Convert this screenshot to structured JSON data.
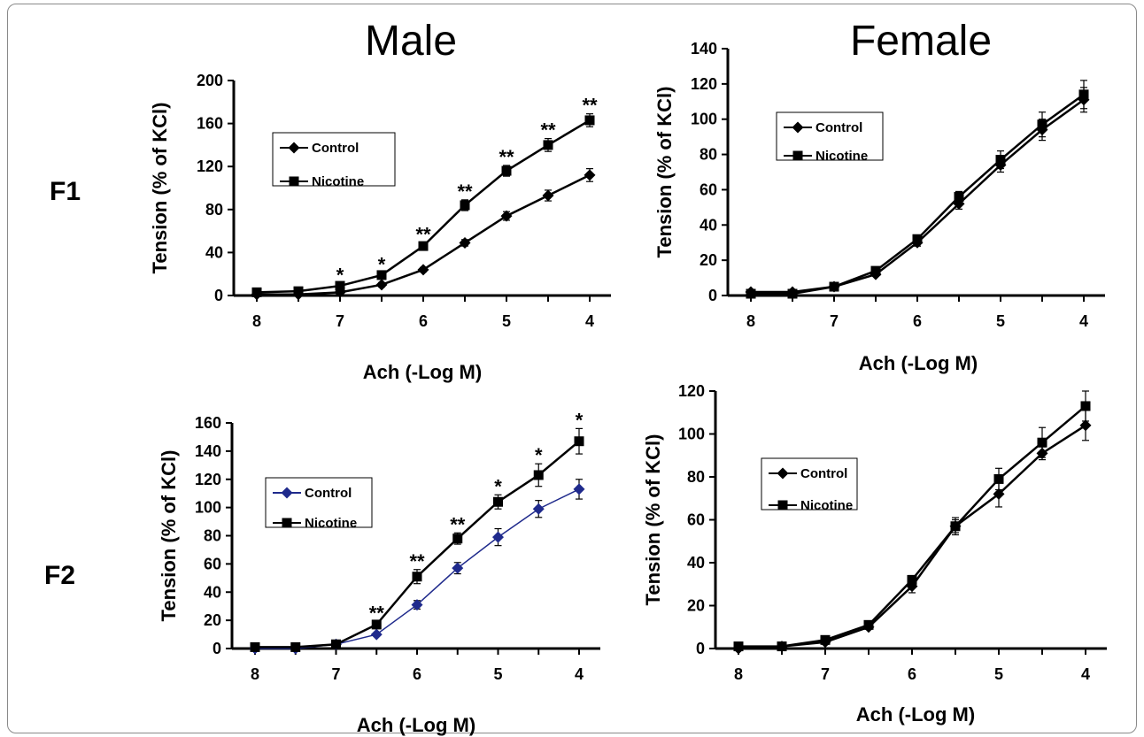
{
  "figure": {
    "col_titles": [
      "Male",
      "Female"
    ],
    "row_labels": [
      "F1",
      "F2"
    ]
  },
  "chart_data": [
    {
      "id": "F1-male",
      "type": "line",
      "title": "",
      "xlabel": "Ach (-Log M)",
      "ylabel": "Tension (% of KCl)",
      "x": [
        8,
        7.5,
        7,
        6.5,
        6,
        5.5,
        5,
        4.5,
        4
      ],
      "x_ticks": [
        8,
        7,
        6,
        5,
        4
      ],
      "xlim": [
        8,
        4
      ],
      "ylim": [
        0,
        200
      ],
      "y_ticks": [
        0,
        40,
        80,
        120,
        160,
        200
      ],
      "legend_position": "upper-left",
      "series": [
        {
          "name": "Control",
          "marker": "diamond",
          "color": "#000000",
          "values": [
            1,
            1,
            3,
            10,
            24,
            49,
            74,
            93,
            112
          ],
          "errors": [
            1,
            1,
            1,
            2,
            2,
            3,
            4,
            5,
            6
          ]
        },
        {
          "name": "Nicotine",
          "marker": "square",
          "color": "#000000",
          "values": [
            3,
            4,
            9,
            19,
            46,
            84,
            116,
            140,
            163
          ],
          "errors": [
            1,
            1,
            2,
            2,
            3,
            5,
            5,
            6,
            6
          ]
        }
      ],
      "annotations": [
        "",
        "",
        "*",
        "*",
        "**",
        "**",
        "**",
        "**",
        "**"
      ]
    },
    {
      "id": "F1-female",
      "type": "line",
      "title": "",
      "xlabel": "Ach (-Log M)",
      "ylabel": "Tension (% of KCl)",
      "x": [
        8,
        7.5,
        7,
        6.5,
        6,
        5.5,
        5,
        4.5,
        4
      ],
      "x_ticks": [
        8,
        7,
        6,
        5,
        4
      ],
      "xlim": [
        8,
        4
      ],
      "ylim": [
        0,
        140
      ],
      "y_ticks": [
        0,
        20,
        40,
        60,
        80,
        100,
        120,
        140
      ],
      "legend_position": "upper-left",
      "series": [
        {
          "name": "Control",
          "marker": "diamond",
          "color": "#000000",
          "values": [
            2,
            2,
            5,
            12,
            30,
            52,
            74,
            94,
            111
          ],
          "errors": [
            1,
            1,
            1,
            1,
            2,
            3,
            4,
            6,
            7
          ]
        },
        {
          "name": "Nicotine",
          "marker": "square",
          "color": "#000000",
          "values": [
            1,
            1,
            5,
            14,
            32,
            56,
            77,
            97,
            114
          ],
          "errors": [
            1,
            1,
            1,
            1,
            2,
            3,
            5,
            7,
            8
          ]
        }
      ],
      "annotations": []
    },
    {
      "id": "F2-male",
      "type": "line",
      "title": "",
      "xlabel": "Ach (-Log M)",
      "ylabel": "Tension (% of KCl)",
      "x": [
        8,
        7.5,
        7,
        6.5,
        6,
        5.5,
        5,
        4.5,
        4
      ],
      "x_ticks": [
        8,
        7,
        6,
        5,
        4
      ],
      "xlim": [
        8,
        4
      ],
      "ylim": [
        0,
        160
      ],
      "y_ticks": [
        0,
        20,
        40,
        60,
        80,
        100,
        120,
        140,
        160
      ],
      "legend_position": "center-left",
      "series": [
        {
          "name": "Control",
          "marker": "diamond",
          "color": "#1f2a8c",
          "values": [
            0,
            0,
            3,
            10,
            31,
            57,
            79,
            99,
            113
          ],
          "errors": [
            1,
            1,
            1,
            1,
            3,
            4,
            6,
            6,
            7
          ]
        },
        {
          "name": "Nicotine",
          "marker": "square",
          "color": "#000000",
          "values": [
            1,
            1,
            3,
            17,
            51,
            78,
            104,
            123,
            147
          ],
          "errors": [
            1,
            1,
            1,
            2,
            5,
            4,
            5,
            8,
            9
          ]
        }
      ],
      "annotations": [
        "",
        "",
        "",
        "**",
        "**",
        "**",
        "*",
        "*",
        "*"
      ]
    },
    {
      "id": "F2-female",
      "type": "line",
      "title": "",
      "xlabel": "Ach (-Log M)",
      "ylabel": "Tension (% of KCl)",
      "x": [
        8,
        7.5,
        7,
        6.5,
        6,
        5.5,
        5,
        4.5,
        4
      ],
      "x_ticks": [
        8,
        7,
        6,
        5,
        4
      ],
      "xlim": [
        8,
        4
      ],
      "ylim": [
        0,
        120
      ],
      "y_ticks": [
        0,
        20,
        40,
        60,
        80,
        100,
        120
      ],
      "legend_position": "center-left",
      "series": [
        {
          "name": "Control",
          "marker": "diamond",
          "color": "#000000",
          "values": [
            0,
            1,
            3,
            10,
            29,
            57,
            72,
            91,
            104
          ],
          "errors": [
            1,
            1,
            1,
            1,
            3,
            3,
            6,
            3,
            7
          ]
        },
        {
          "name": "Nicotine",
          "marker": "square",
          "color": "#000000",
          "values": [
            1,
            1,
            4,
            11,
            32,
            57,
            79,
            96,
            113
          ],
          "errors": [
            1,
            1,
            1,
            1,
            2,
            4,
            5,
            7,
            7
          ]
        }
      ],
      "annotations": []
    }
  ]
}
